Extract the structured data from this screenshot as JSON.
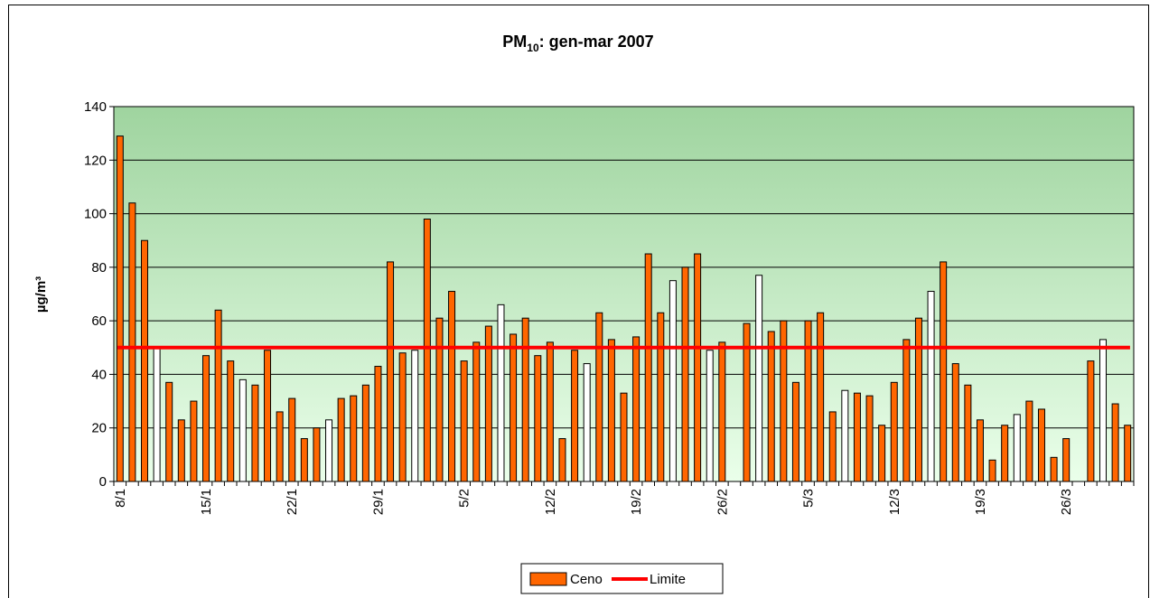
{
  "chart_data": {
    "type": "bar",
    "title": {
      "main": "PM",
      "sub": "10",
      "rest": ": gen-mar 2007"
    },
    "y_label": "µg/m³",
    "categories": [
      "8/1",
      null,
      null,
      null,
      null,
      null,
      null,
      "15/1",
      null,
      null,
      null,
      null,
      null,
      null,
      "22/1",
      null,
      null,
      null,
      null,
      null,
      null,
      "29/1",
      null,
      null,
      null,
      null,
      null,
      null,
      "5/2",
      null,
      null,
      null,
      null,
      null,
      null,
      "12/2",
      null,
      null,
      null,
      null,
      null,
      null,
      "19/2",
      null,
      null,
      null,
      null,
      null,
      null,
      "26/2",
      null,
      null,
      null,
      null,
      null,
      null,
      "5/3",
      null,
      null,
      null,
      null,
      null,
      null,
      "12/3",
      null,
      null,
      null,
      null,
      null,
      null,
      "19/3",
      null,
      null,
      null,
      null,
      null,
      null,
      "26/3",
      null,
      null,
      null,
      null,
      null
    ],
    "series": [
      {
        "name": "Ceno",
        "color": "#ff6600",
        "values": [
          129,
          104,
          90,
          50,
          37,
          23,
          30,
          47,
          64,
          45,
          38,
          36,
          49,
          26,
          31,
          16,
          20,
          23,
          31,
          32,
          36,
          43,
          82,
          48,
          49,
          98,
          61,
          71,
          45,
          52,
          58,
          66,
          55,
          61,
          47,
          52,
          16,
          49,
          44,
          63,
          53,
          33,
          54,
          85,
          63,
          75,
          80,
          85,
          49,
          52,
          null,
          59,
          77,
          56,
          60,
          37,
          60,
          63,
          26,
          34,
          33,
          32,
          21,
          37,
          53,
          61,
          71,
          82,
          44,
          36,
          23,
          8,
          21,
          25,
          30,
          27,
          9,
          16,
          null,
          45,
          53,
          29,
          21
        ],
        "point_colors": [
          "#ff6600",
          "#ff6600",
          "#ff6600",
          "#ffffff",
          "#ff6600",
          "#ff6600",
          "#ff6600",
          "#ff6600",
          "#ff6600",
          "#ff6600",
          "#ffffff",
          "#ff6600",
          "#ff6600",
          "#ff6600",
          "#ff6600",
          "#ff6600",
          "#ff6600",
          "#ffffff",
          "#ff6600",
          "#ff6600",
          "#ff6600",
          "#ff6600",
          "#ff6600",
          "#ff6600",
          "#ffffff",
          "#ff6600",
          "#ff6600",
          "#ff6600",
          "#ff6600",
          "#ff6600",
          "#ff6600",
          "#ffffff",
          "#ff6600",
          "#ff6600",
          "#ff6600",
          "#ff6600",
          "#ff6600",
          "#ff6600",
          "#ffffff",
          "#ff6600",
          "#ff6600",
          "#ff6600",
          "#ff6600",
          "#ff6600",
          "#ff6600",
          "#ffffff",
          "#ff6600",
          "#ff6600",
          "#ffffff",
          "#ff6600",
          "#ff6600",
          "#ff6600",
          "#ffffff",
          "#ff6600",
          "#ff6600",
          "#ff6600",
          "#ff6600",
          "#ff6600",
          "#ff6600",
          "#ffffff",
          "#ff6600",
          "#ff6600",
          "#ff6600",
          "#ff6600",
          "#ff6600",
          "#ff6600",
          "#ffffff",
          "#ff6600",
          "#ff6600",
          "#ff6600",
          "#ff6600",
          "#ff6600",
          "#ff6600",
          "#ffffff",
          "#ff6600",
          "#ff6600",
          "#ff6600",
          "#ff6600",
          "#ff6600",
          "#ff6600",
          "#ffffff",
          "#ff6600",
          "#ff6600"
        ]
      },
      {
        "name": "Limite",
        "color": "#ff0000",
        "type": "hline",
        "value": 50
      }
    ],
    "ylim": [
      0,
      140
    ],
    "yticks": [
      0,
      20,
      40,
      60,
      80,
      100,
      120,
      140
    ],
    "grid": true,
    "legend": "bottom"
  }
}
